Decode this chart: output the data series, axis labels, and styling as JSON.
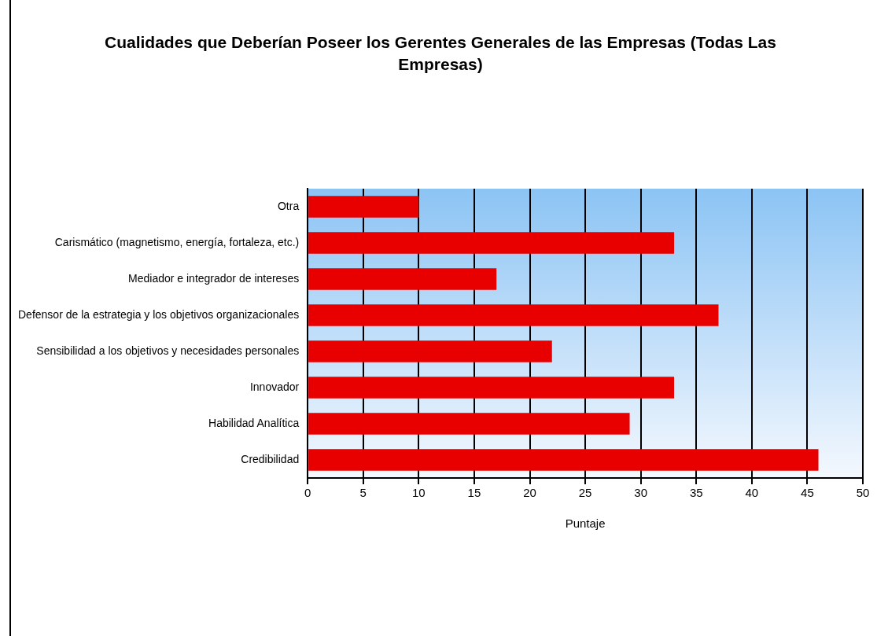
{
  "chart_data": {
    "type": "bar",
    "orientation": "horizontal",
    "title": "Cualidades que Deberían Poseer los Gerentes Generales de las Empresas (Todas Las Empresas)",
    "xlabel": "Puntaje",
    "categories": [
      "Otra",
      "Carismático (magnetismo, energía, fortaleza, etc.)",
      "Mediador e integrador de intereses",
      "Defensor de la estrategia y los objetivos organizacionales",
      "Sensibilidad a los objetivos y necesidades personales",
      "Innovador",
      "Habilidad Analítica",
      "Credibilidad"
    ],
    "values": [
      10,
      33,
      17,
      37,
      22,
      33,
      29,
      46
    ],
    "color": "#e80000",
    "xlim": [
      0,
      50
    ],
    "xticks": [
      0,
      5,
      10,
      15,
      20,
      25,
      30,
      35,
      40,
      45,
      50
    ],
    "grid": "x",
    "legend": false
  }
}
